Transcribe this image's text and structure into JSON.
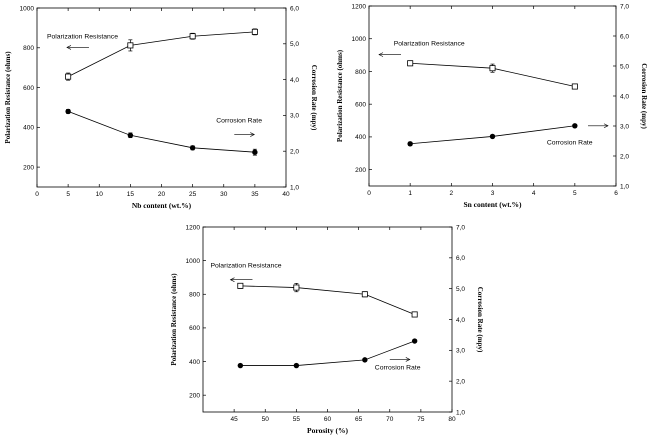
{
  "chart_data": [
    {
      "type": "line",
      "xlabel": "Nb content (wt.%)",
      "ylabel_left": "Polarization Resistance (ohms)",
      "ylabel_right": "Corrosion Rate (mpy)",
      "xlim": [
        0,
        40
      ],
      "xticks": [
        "0",
        "5",
        "10",
        "15",
        "20",
        "25",
        "30",
        "35",
        "40"
      ],
      "ylim_left": [
        100,
        1000
      ],
      "yticks_left": [
        "200",
        "400",
        "600",
        "800",
        "1000"
      ],
      "ylim_right": [
        1.0,
        6.0
      ],
      "yticks_right": [
        "1,0",
        "2,0",
        "3,0",
        "4,0",
        "5,0",
        "6,0"
      ],
      "series": [
        {
          "name": "Polarization Resistance",
          "marker": "open-square",
          "x": [
            5,
            15,
            25,
            35
          ],
          "y": [
            655,
            812,
            858,
            880
          ],
          "err": [
            18,
            28,
            15,
            15
          ]
        },
        {
          "name": "Corrosion Rate",
          "marker": "filled-circle",
          "x": [
            5,
            15,
            25,
            35
          ],
          "y": [
            480,
            360,
            297,
            275
          ],
          "err": [
            10,
            12,
            10,
            15
          ]
        }
      ],
      "annotations": [
        {
          "text": "Polarization Resistance",
          "arrow": "left"
        },
        {
          "text": "Corrosion Rate",
          "arrow": "right"
        }
      ]
    },
    {
      "type": "line",
      "xlabel": "Sn content (wt.%)",
      "ylabel_left": "Polarization Resistance (ohms)",
      "ylabel_right": "Corrosion Rate (mpy)",
      "xlim": [
        0,
        6
      ],
      "xticks": [
        "0",
        "1",
        "2",
        "3",
        "4",
        "5",
        "6"
      ],
      "ylim_left": [
        100,
        1200
      ],
      "yticks_left": [
        "200",
        "400",
        "600",
        "800",
        "1000",
        "1200"
      ],
      "ylim_right": [
        1.0,
        7.0
      ],
      "yticks_right": [
        "1,0",
        "2,0",
        "3,0",
        "4,0",
        "5,0",
        "6,0",
        "7,0"
      ],
      "series": [
        {
          "name": "Polarization Resistance",
          "marker": "open-square",
          "x": [
            1,
            3,
            5
          ],
          "y": [
            850,
            820,
            708
          ],
          "err": [
            15,
            25,
            15
          ]
        },
        {
          "name": "Corrosion Rate",
          "marker": "filled-circle",
          "x": [
            1,
            3,
            5
          ],
          "y": [
            358,
            403,
            468
          ],
          "err": [
            10,
            8,
            8
          ]
        }
      ],
      "annotations": [
        {
          "text": "Polarization Resistance",
          "arrow": "left"
        },
        {
          "text": "Corrosion Rate",
          "arrow": "right"
        }
      ]
    },
    {
      "type": "line",
      "xlabel": "Porosity (%)",
      "ylabel_left": "Polarization Resistance (ohms)",
      "ylabel_right": "Corrosion Rate (mpy)",
      "xlim": [
        40,
        80
      ],
      "xticks": [
        "45",
        "50",
        "55",
        "60",
        "65",
        "70",
        "75",
        "80"
      ],
      "ylim_left": [
        100,
        1200
      ],
      "yticks_left": [
        "200",
        "400",
        "600",
        "800",
        "1000",
        "1200"
      ],
      "ylim_right": [
        1.0,
        7.0
      ],
      "yticks_right": [
        "1,0",
        "2,0",
        "3,0",
        "4,0",
        "5,0",
        "6,0",
        "7,0"
      ],
      "series": [
        {
          "name": "Polarization Resistance",
          "marker": "open-square",
          "x": [
            46,
            55,
            66,
            74
          ],
          "y": [
            850,
            840,
            800,
            680
          ],
          "err": [
            15,
            25,
            15,
            12
          ]
        },
        {
          "name": "Corrosion Rate",
          "marker": "filled-circle",
          "x": [
            46,
            55,
            66,
            74
          ],
          "y": [
            376,
            376,
            410,
            522
          ],
          "err": [
            8,
            8,
            8,
            8
          ]
        }
      ],
      "annotations": [
        {
          "text": "Polarization Resistance",
          "arrow": "left"
        },
        {
          "text": "Corrosion Rate",
          "arrow": "right"
        }
      ]
    }
  ]
}
